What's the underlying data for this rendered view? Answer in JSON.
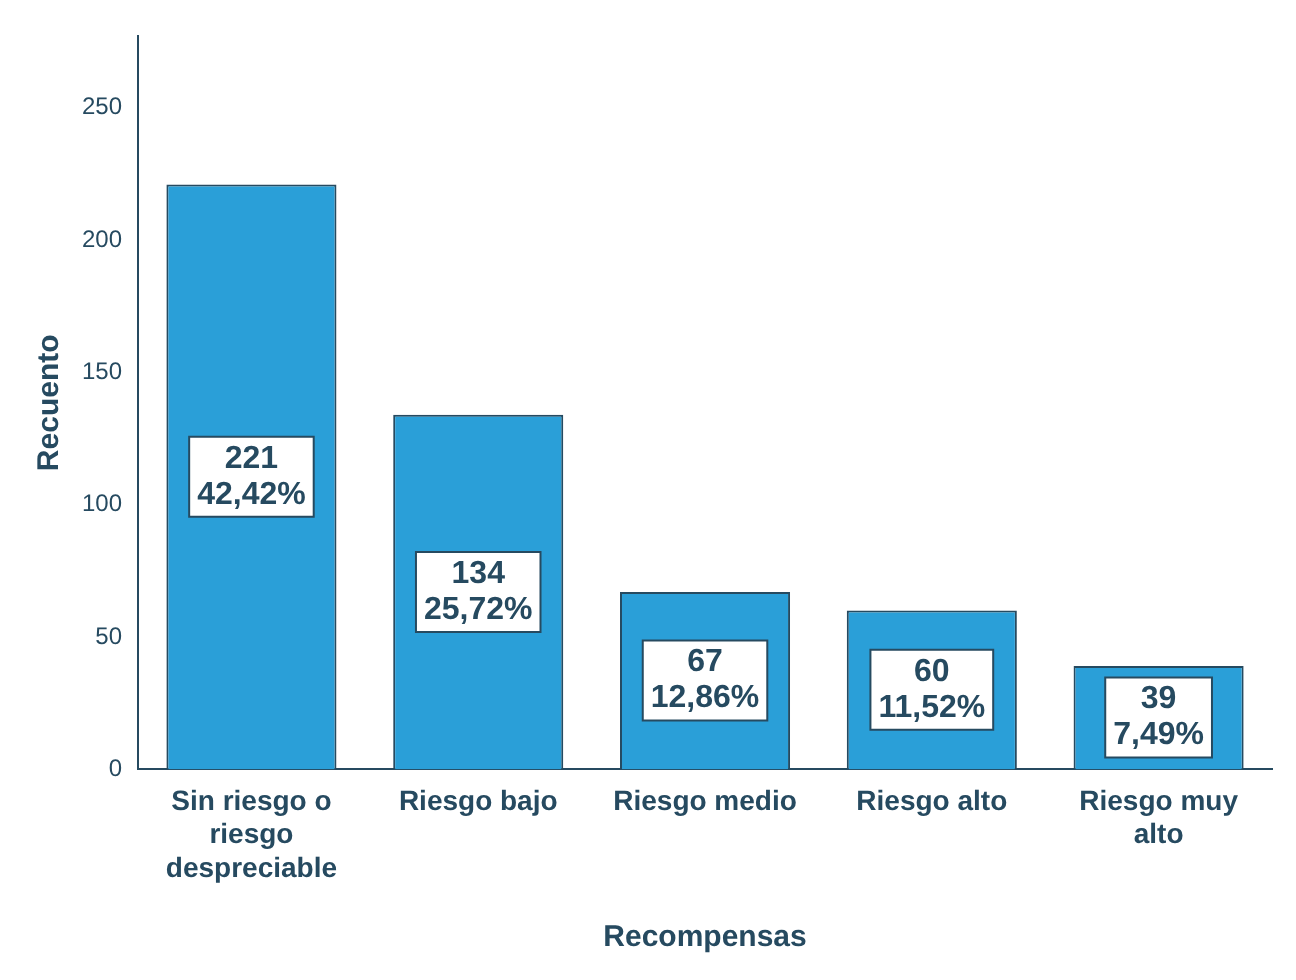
{
  "chart_data": {
    "type": "bar",
    "xlabel": "Recompensas",
    "ylabel": "Recuento",
    "categories": [
      "Sin riesgo o riesgo despreciable",
      "Riesgo bajo",
      "Riesgo medio",
      "Riesgo alto",
      "Riesgo muy alto"
    ],
    "values": [
      221,
      134,
      67,
      60,
      39
    ],
    "value_labels": [
      "221\n42,42%",
      "134\n25,72%",
      "67\n12,86%",
      "60\n11,52%",
      "39\n7,49%"
    ],
    "color": "#2a9fd8",
    "ylim": [
      0,
      277
    ],
    "yticks": [
      0,
      50,
      100,
      150,
      200,
      250
    ],
    "grid": false,
    "legend": false
  }
}
